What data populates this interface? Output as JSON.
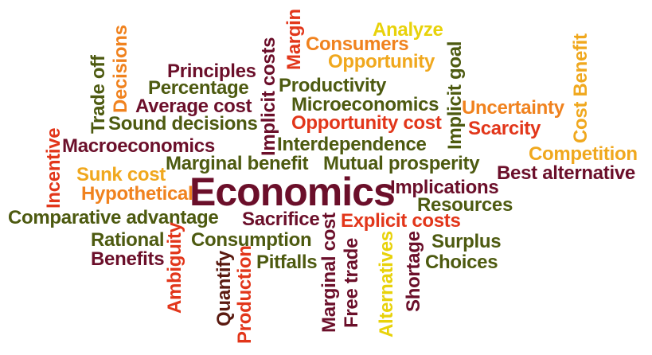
{
  "colors": {
    "maroon": "#6b0f2a",
    "olive": "#4d5a10",
    "orange": "#f0821e",
    "red": "#e2361a",
    "gold": "#f0a81e",
    "yellow": "#e8d20a",
    "darkbrown": "#5a1a10",
    "burnt": "#d9541a"
  },
  "words": [
    {
      "key": "economics",
      "text": "Economics"
    },
    {
      "key": "analyze",
      "text": "Analyze"
    },
    {
      "key": "consumers",
      "text": "Consumers"
    },
    {
      "key": "opportunity",
      "text": "Opportunity"
    },
    {
      "key": "margin",
      "text": "Margin"
    },
    {
      "key": "implicit_costs",
      "text": "Implicit costs"
    },
    {
      "key": "implicit_goal",
      "text": "Implicit goal"
    },
    {
      "key": "cost_benefit",
      "text": "Cost Benefit"
    },
    {
      "key": "decisions",
      "text": "Decisions"
    },
    {
      "key": "trade_off",
      "text": "Trade off"
    },
    {
      "key": "principles",
      "text": "Principles"
    },
    {
      "key": "percentage",
      "text": "Percentage"
    },
    {
      "key": "productivity",
      "text": "Productivity"
    },
    {
      "key": "average_cost",
      "text": "Average cost"
    },
    {
      "key": "microeconomics",
      "text": "Microeconomics"
    },
    {
      "key": "uncertainty",
      "text": "Uncertainty"
    },
    {
      "key": "sound_decisions",
      "text": "Sound decisions"
    },
    {
      "key": "opportunity_cost",
      "text": "Opportunity cost"
    },
    {
      "key": "scarcity",
      "text": "Scarcity"
    },
    {
      "key": "incentive",
      "text": "Incentive"
    },
    {
      "key": "macroeconomics",
      "text": "Macroeconomics"
    },
    {
      "key": "interdependence",
      "text": "Interdependence"
    },
    {
      "key": "competition",
      "text": "Competition"
    },
    {
      "key": "sunk_cost",
      "text": "Sunk cost"
    },
    {
      "key": "marginal_benefit",
      "text": "Marginal benefit"
    },
    {
      "key": "mutual_prosperity",
      "text": "Mutual prosperity"
    },
    {
      "key": "best_alternative",
      "text": "Best alternative"
    },
    {
      "key": "hypothetical",
      "text": "Hypothetical"
    },
    {
      "key": "implications",
      "text": "Implications"
    },
    {
      "key": "resources",
      "text": "Resources"
    },
    {
      "key": "comparative_advantage",
      "text": "Comparative advantage"
    },
    {
      "key": "sacrifice",
      "text": "Sacrifice"
    },
    {
      "key": "explicit_costs",
      "text": "Explicit costs"
    },
    {
      "key": "rational",
      "text": "Rational"
    },
    {
      "key": "ambiguity",
      "text": "Ambiguity"
    },
    {
      "key": "consumption",
      "text": "Consumption"
    },
    {
      "key": "marginal_cost",
      "text": "Marginal cost"
    },
    {
      "key": "alternatives",
      "text": "Alternatives"
    },
    {
      "key": "shortage",
      "text": "Shortage"
    },
    {
      "key": "surplus",
      "text": "Surplus"
    },
    {
      "key": "benefits",
      "text": "Benefits"
    },
    {
      "key": "quantify",
      "text": "Quantify"
    },
    {
      "key": "production",
      "text": "Production"
    },
    {
      "key": "pitfalls",
      "text": "Pitfalls"
    },
    {
      "key": "free_trade",
      "text": "Free trade"
    },
    {
      "key": "choices",
      "text": "Choices"
    }
  ]
}
